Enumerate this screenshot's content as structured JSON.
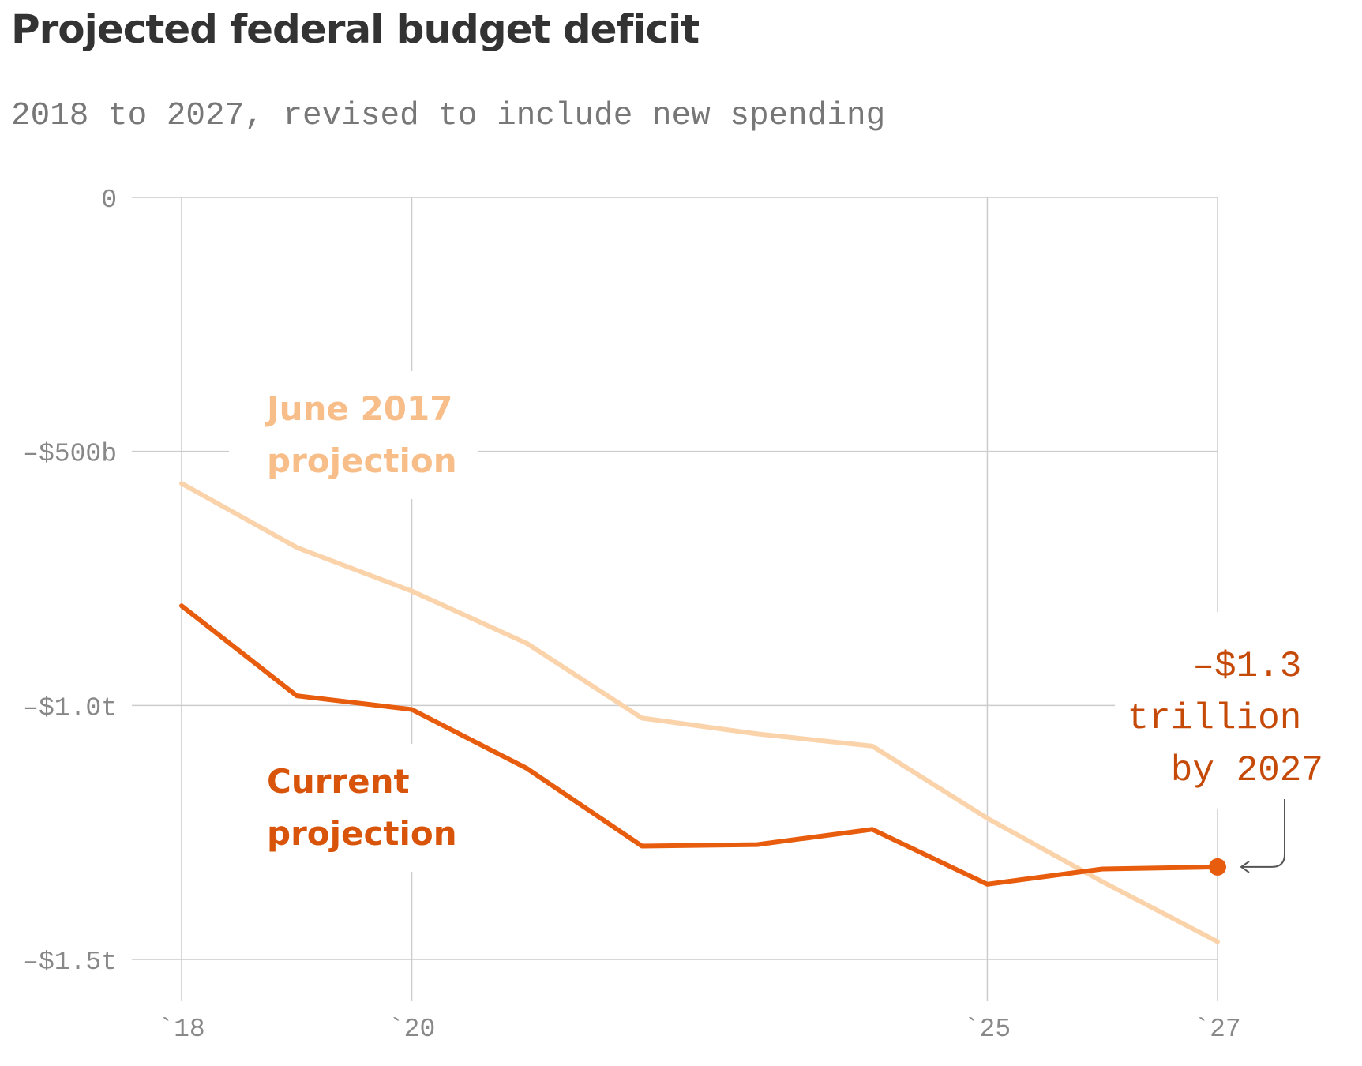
{
  "title": "Projected federal budget deficit",
  "subtitle": "2018 to 2027, revised to include new spending",
  "colors": {
    "current": "#e85c0d",
    "june": "#fbd3ab",
    "june_label": "#f8be8a",
    "current_label": "#d9540b",
    "annotation": "#c54a08",
    "grid": "#cccccc",
    "tick": "#888888",
    "arrow": "#555555"
  },
  "chart_data": {
    "type": "line",
    "title": "Projected federal budget deficit",
    "subtitle": "2018 to 2027, revised to include new spending",
    "xlabel": "",
    "ylabel": "",
    "x": [
      2018,
      2019,
      2020,
      2021,
      2022,
      2023,
      2024,
      2025,
      2026,
      2027
    ],
    "xlim": [
      2018,
      2027
    ],
    "ylim": [
      -1500,
      0
    ],
    "y_unit": "billions of dollars",
    "grid": true,
    "x_ticks": [
      {
        "value": 2018,
        "label": "`18"
      },
      {
        "value": 2020,
        "label": "`20"
      },
      {
        "value": 2025,
        "label": "`25"
      },
      {
        "value": 2027,
        "label": "`27"
      }
    ],
    "y_ticks": [
      {
        "value": 0,
        "label": "0"
      },
      {
        "value": -500,
        "label": "–$500b"
      },
      {
        "value": -1000,
        "label": "–$1.0t"
      },
      {
        "value": -1500,
        "label": "–$1.5t"
      }
    ],
    "series": [
      {
        "name_lines": [
          "June 2017",
          "projection"
        ],
        "values": [
          -563,
          -689,
          -775,
          -878,
          -1025,
          -1056,
          -1080,
          -1222,
          -1347,
          -1465
        ]
      },
      {
        "name_lines": [
          "Current",
          "projection"
        ],
        "values": [
          -804,
          -981,
          -1008,
          -1124,
          -1277,
          -1274,
          -1244,
          -1352,
          -1322,
          -1318
        ]
      }
    ],
    "annotation": {
      "lines": [
        "–$1.3",
        "trillion",
        "by 2027"
      ],
      "x": 2027,
      "y": -1318
    }
  }
}
